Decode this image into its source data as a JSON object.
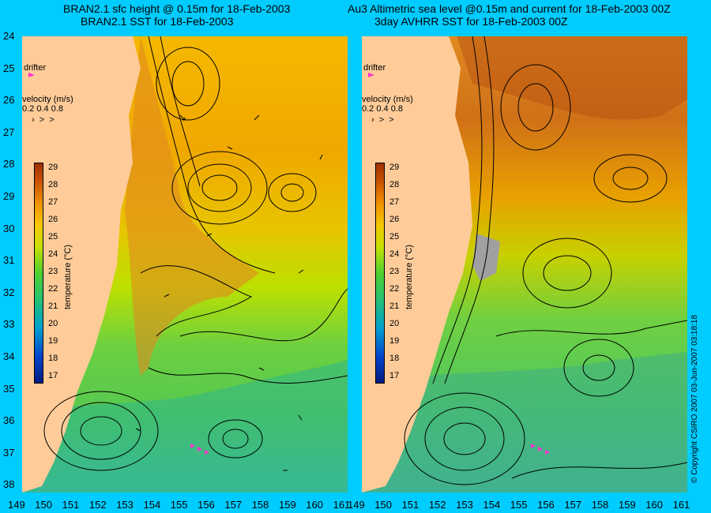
{
  "titles": {
    "left_line1": "BRAN2.1 sfc height @ 0.15m for 18-Feb-2003",
    "left_line2": "BRAN2.1 SST for 18-Feb-2003",
    "right_line1": "Au3 Altimetric sea level  @0.15m and current for 18-Feb-2003 00Z",
    "right_line2": "3day AVHRR SST for 18-Feb-2003 00Z"
  },
  "y_axis": {
    "ticks": [
      "24",
      "25",
      "26",
      "27",
      "28",
      "29",
      "30",
      "31",
      "32",
      "33",
      "34",
      "35",
      "36",
      "37",
      "38"
    ]
  },
  "x_axis": {
    "left_ticks": [
      "149",
      "150",
      "151",
      "152",
      "153",
      "154",
      "155",
      "156",
      "157",
      "158",
      "159",
      "160",
      "161"
    ],
    "right_ticks": [
      "149",
      "150",
      "151",
      "152",
      "153",
      "154",
      "155",
      "156",
      "157",
      "158",
      "159",
      "160",
      "161"
    ]
  },
  "legend": {
    "drifter_label": "drifter",
    "velocity_label": "velocity (m/s)",
    "velocity_scale": "0.2 0.4 0.8",
    "colorbar_label": "temperature (°C)",
    "colorbar_ticks": [
      "29",
      "28",
      "27",
      "26",
      "25",
      "24",
      "23",
      "22",
      "21",
      "20",
      "19",
      "18",
      "17"
    ]
  },
  "copyright": "© Copyright CSIRO 2007   03-Jun-2007 03:18:18",
  "colors": {
    "background": "#00ccff",
    "land": "#ffcc99",
    "drifter": "#ff33cc"
  }
}
